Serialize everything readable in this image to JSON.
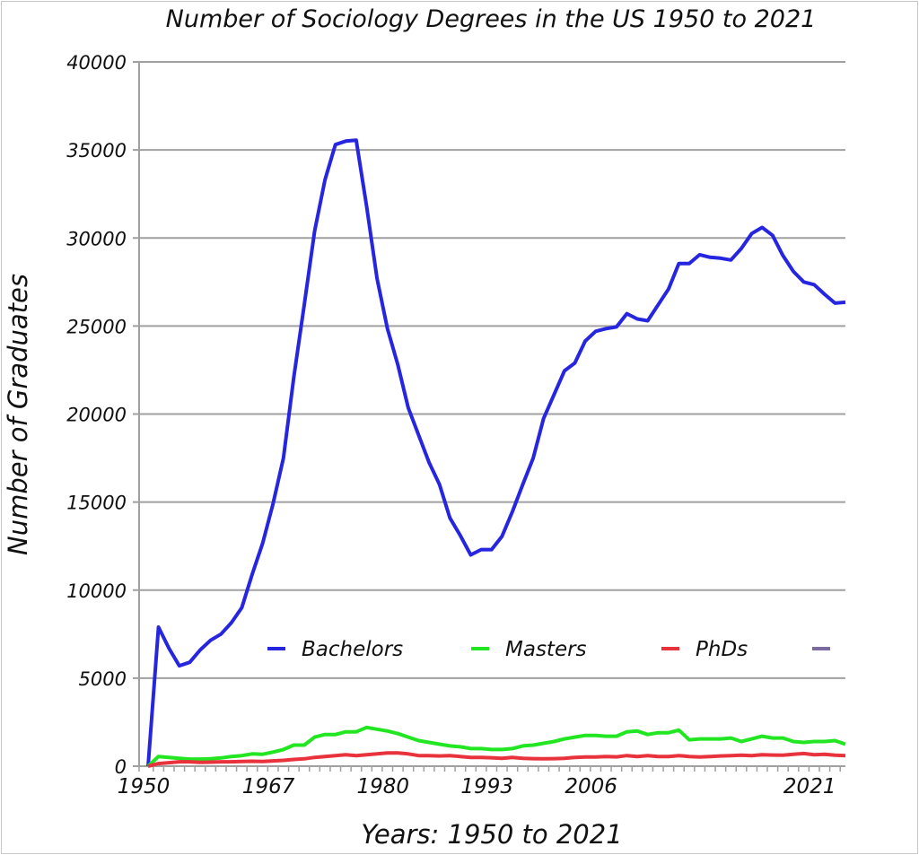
{
  "chart_data": {
    "type": "line",
    "title": "Number of Sociology Degrees in the US 1950 to 2021",
    "xlabel": "Years: 1950 to 2021",
    "ylabel": "Number of Graduates",
    "ylim": [
      0,
      40000
    ],
    "yticks": [
      0,
      5000,
      10000,
      15000,
      20000,
      25000,
      30000,
      35000,
      40000
    ],
    "xtick_labels": [
      {
        "label": "1950",
        "index": 0
      },
      {
        "label": "1967",
        "index": 12
      },
      {
        "label": "1980",
        "index": 23
      },
      {
        "label": "1993",
        "index": 33
      },
      {
        "label": "2006",
        "index": 43
      },
      {
        "label": "2021",
        "index": 64
      }
    ],
    "grid": true,
    "legend_position": "center",
    "series": [
      {
        "name": "Bachelors",
        "color": "#2626e0",
        "values": [
          0,
          7900,
          6700,
          5700,
          5900,
          6600,
          7150,
          7500,
          8150,
          9000,
          10900,
          12650,
          14900,
          17500,
          22100,
          26200,
          30400,
          33300,
          35300,
          35500,
          35550,
          31800,
          27700,
          24850,
          22800,
          20350,
          18800,
          17250,
          16000,
          14100,
          13100,
          12000,
          12300,
          12300,
          13050,
          14450,
          16000,
          17500,
          19750,
          21100,
          22450,
          22900,
          24150,
          24700,
          24850,
          24950,
          25700,
          25400,
          25300,
          26200,
          27100,
          28550,
          28550,
          29050,
          28900,
          28850,
          28750,
          29400,
          30250,
          30600,
          30150,
          29000,
          28100,
          27500,
          27350,
          26800,
          26300,
          26350
        ]
      },
      {
        "name": "Masters",
        "color": "#22e622",
        "values": [
          0,
          550,
          500,
          450,
          400,
          400,
          420,
          470,
          550,
          600,
          700,
          680,
          800,
          950,
          1200,
          1200,
          1650,
          1800,
          1800,
          1950,
          1950,
          2200,
          2100,
          2000,
          1850,
          1650,
          1450,
          1350,
          1250,
          1150,
          1100,
          1000,
          1000,
          950,
          950,
          1000,
          1150,
          1200,
          1300,
          1400,
          1550,
          1650,
          1750,
          1750,
          1700,
          1700,
          1950,
          2000,
          1800,
          1900,
          1900,
          2050,
          1500,
          1550,
          1550,
          1550,
          1600,
          1400,
          1550,
          1700,
          1600,
          1600,
          1400,
          1350,
          1400,
          1400,
          1450,
          1250
        ]
      },
      {
        "name": "PhDs",
        "color": "#e8323c",
        "values": [
          0,
          150,
          200,
          250,
          250,
          220,
          230,
          250,
          250,
          270,
          280,
          270,
          300,
          330,
          380,
          420,
          500,
          550,
          600,
          650,
          600,
          650,
          700,
          750,
          750,
          700,
          600,
          600,
          580,
          600,
          550,
          500,
          500,
          480,
          450,
          500,
          450,
          430,
          420,
          430,
          450,
          500,
          520,
          520,
          550,
          530,
          600,
          550,
          600,
          550,
          550,
          600,
          550,
          520,
          550,
          580,
          600,
          620,
          600,
          650,
          630,
          620,
          680,
          720,
          650,
          680,
          620,
          600
        ]
      },
      {
        "name": "",
        "color": "#7a6aa0",
        "values": []
      }
    ]
  }
}
